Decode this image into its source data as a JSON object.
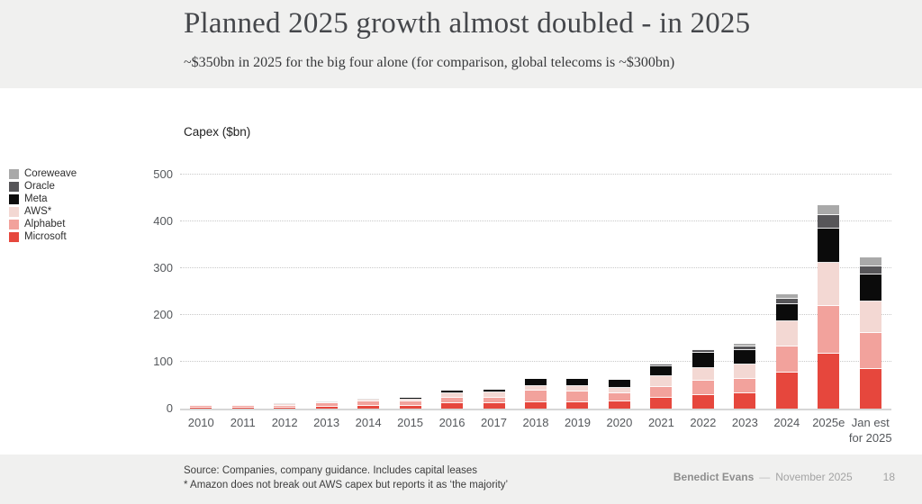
{
  "header": {
    "title": "Planned 2025 growth almost doubled - in 2025",
    "subtitle": "~$350bn in 2025 for the big four alone (for comparison, global telecoms is ~$300bn)"
  },
  "chart_data": {
    "type": "bar",
    "stacked": true,
    "title": "Capex ($bn)",
    "xlabel": "",
    "ylabel": "Capex ($bn)",
    "ylim": [
      0,
      500
    ],
    "yticks": [
      0,
      100,
      200,
      300,
      400,
      500
    ],
    "grid": "horizontal-dotted",
    "legend_position": "left, top-to-bottom reverse of stack order",
    "categories": [
      "2010",
      "2011",
      "2012",
      "2013",
      "2014",
      "2015",
      "2016",
      "2017",
      "2018",
      "2019",
      "2020",
      "2021",
      "2022",
      "2023",
      "2024",
      "2025e",
      "Jan est for 2025"
    ],
    "series": [
      {
        "name": "Microsoft",
        "color": "#E6473D",
        "values": [
          2,
          2,
          2.5,
          4,
          5,
          6,
          12,
          11,
          13,
          13,
          15,
          24,
          28,
          32,
          76,
          118,
          85
        ]
      },
      {
        "name": "Alphabet",
        "color": "#F2A29C",
        "values": [
          4,
          3.5,
          3.5,
          7,
          11,
          10,
          11,
          12,
          25,
          24,
          17,
          23,
          31,
          31,
          57,
          102,
          77
        ]
      },
      {
        "name": "AWS*",
        "color": "#F3D8D3",
        "values": [
          1,
          1.5,
          4,
          3,
          4,
          4,
          10,
          11,
          11,
          12,
          13,
          22,
          28,
          31,
          54,
          92,
          66
        ]
      },
      {
        "name": "Meta",
        "color": "#0B0B0B",
        "values": [
          0,
          0.5,
          1.5,
          1,
          2,
          2.5,
          5,
          7,
          15,
          15,
          16,
          21,
          32,
          31,
          37,
          72,
          59
        ]
      },
      {
        "name": "Oracle",
        "color": "#575659",
        "values": [
          0,
          0,
          0,
          0,
          0,
          0,
          0,
          0,
          0,
          0,
          0,
          4,
          7,
          8,
          11,
          30,
          16
        ]
      },
      {
        "name": "Coreweave",
        "color": "#A9A9A9",
        "values": [
          0,
          0,
          0,
          0,
          0,
          0,
          0,
          0,
          0,
          0,
          0,
          0,
          2,
          5,
          9,
          20,
          21
        ]
      }
    ]
  },
  "theme": {
    "band_background": "#F0F0EF",
    "content_background": "#FFFFFF",
    "title_color": "#45474B",
    "axis_text_color": "#55585C",
    "gridline_color": "#C9C9C9",
    "footer_text_color": "#A3A3A3"
  },
  "footer": {
    "source_line": "Source: Companies, company guidance. Includes capital leases",
    "footnote_line": "* Amazon does not break out AWS capex but reports it as ‘the majority’",
    "author": "Benedict Evans",
    "separator": "—",
    "date": "November 2025",
    "page_number": "18"
  }
}
